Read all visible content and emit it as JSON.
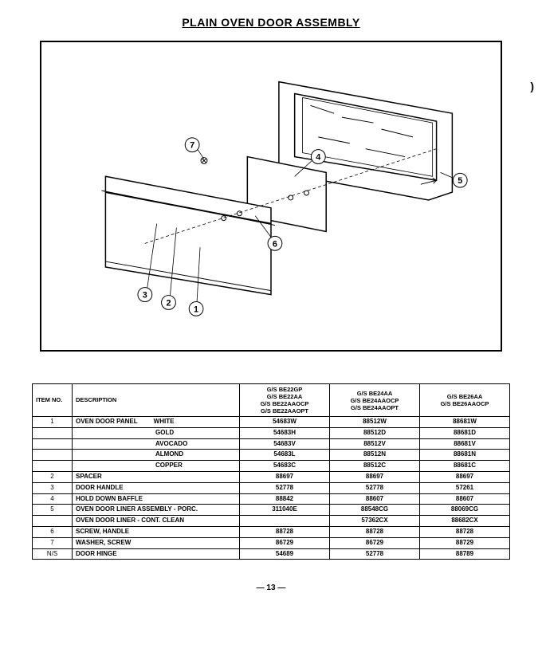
{
  "title": "PLAIN OVEN DOOR ASSEMBLY",
  "page_number": "— 13 —",
  "stray": ")",
  "callouts": [
    "1",
    "2",
    "3",
    "4",
    "5",
    "6",
    "7"
  ],
  "table": {
    "headers": {
      "item": "ITEM NO.",
      "desc": "DESCRIPTION",
      "col1": "G/S BE22GP\nG/S BE22AA\nG/S BE22AAOCP\nG/S BE22AAOPT",
      "col2": "G/S BE24AA\nG/S BE24AAOCP\nG/S BE24AAOPT",
      "col3": "G/S BE26AA\nG/S BE26AAOCP"
    },
    "rows": [
      {
        "item": "1",
        "desc": "OVEN DOOR PANEL",
        "sub": "WHITE",
        "c1": "54683W",
        "c2": "88512W",
        "c3": "88681W"
      },
      {
        "item": "",
        "desc": "",
        "sub": "GOLD",
        "c1": "54683H",
        "c2": "88512D",
        "c3": "88681D"
      },
      {
        "item": "",
        "desc": "",
        "sub": "AVOCADO",
        "c1": "54683V",
        "c2": "88512V",
        "c3": "88681V"
      },
      {
        "item": "",
        "desc": "",
        "sub": "ALMOND",
        "c1": "54683L",
        "c2": "88512N",
        "c3": "88681N"
      },
      {
        "item": "",
        "desc": "",
        "sub": "COPPER",
        "c1": "54683C",
        "c2": "88512C",
        "c3": "88681C"
      },
      {
        "item": "2",
        "desc": "SPACER",
        "sub": "",
        "c1": "88697",
        "c2": "88697",
        "c3": "88697"
      },
      {
        "item": "3",
        "desc": "DOOR HANDLE",
        "sub": "",
        "c1": "52778",
        "c2": "52778",
        "c3": "57261"
      },
      {
        "item": "4",
        "desc": "HOLD DOWN BAFFLE",
        "sub": "",
        "c1": "88842",
        "c2": "88607",
        "c3": "88607"
      },
      {
        "item": "5",
        "desc": "OVEN DOOR LINER ASSEMBLY - PORC.",
        "sub": "",
        "c1": "311040E",
        "c2": "88548CG",
        "c3": "88069CG"
      },
      {
        "item": "",
        "desc": "OVEN DOOR LINER - CONT. CLEAN",
        "sub": "",
        "c1": "",
        "c2": "57362CX",
        "c3": "88682CX"
      },
      {
        "item": "6",
        "desc": "SCREW, HANDLE",
        "sub": "",
        "c1": "88728",
        "c2": "88728",
        "c3": "88728"
      },
      {
        "item": "7",
        "desc": "WASHER, SCREW",
        "sub": "",
        "c1": "86729",
        "c2": "86729",
        "c3": "88729"
      },
      {
        "item": "N/S",
        "desc": "DOOR HINGE",
        "sub": "",
        "c1": "54689",
        "c2": "52778",
        "c3": "88789"
      }
    ]
  }
}
